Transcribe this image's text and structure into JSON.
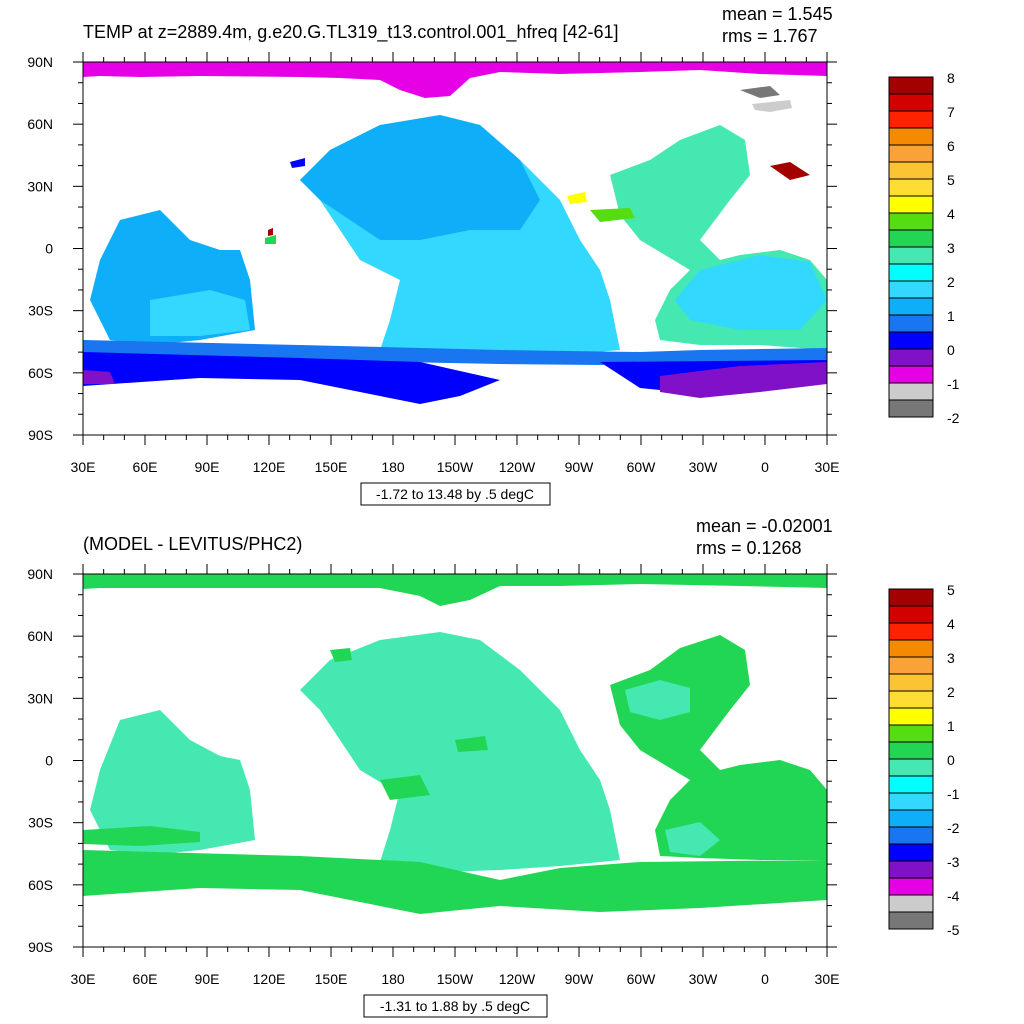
{
  "chart_data": [
    {
      "type": "heatmap",
      "title": "TEMP at z=2889.4m, g.e20.G.TL319_t13.control.001_hfreq [42-61]",
      "mean_label": "mean = 1.545",
      "rms_label": "rms = 1.767",
      "x_ticks": [
        "30E",
        "60E",
        "90E",
        "120E",
        "150E",
        "180",
        "150W",
        "120W",
        "90W",
        "60W",
        "30W",
        "0",
        "30E"
      ],
      "y_ticks": [
        "90N",
        "60N",
        "30N",
        "0",
        "30S",
        "60S",
        "90S"
      ],
      "range_label": "-1.72 to 13.48 by .5 degC",
      "colorbar": {
        "labels": [
          "8",
          "7",
          "6",
          "5",
          "4",
          "3",
          "2",
          "1",
          "0",
          "-1",
          "-2"
        ],
        "colors": [
          "#a30000",
          "#d40000",
          "#ff2200",
          "#f58a00",
          "#fba13a",
          "#fcc332",
          "#ffdd33",
          "#ffff00",
          "#55dd11",
          "#22d655",
          "#44e8b0",
          "#00ffff",
          "#33d8ff",
          "#0eaff8",
          "#1976f0",
          "#0000ff",
          "#8011c9",
          "#e600e6",
          "#cccccc",
          "#777777"
        ]
      }
    },
    {
      "type": "heatmap",
      "title": "(MODEL - LEVITUS/PHC2)",
      "mean_label": "mean = -0.02001",
      "rms_label": "rms = 0.1268",
      "x_ticks": [
        "30E",
        "60E",
        "90E",
        "120E",
        "150E",
        "180",
        "150W",
        "120W",
        "90W",
        "60W",
        "30W",
        "0",
        "30E"
      ],
      "y_ticks": [
        "90N",
        "60N",
        "30N",
        "0",
        "30S",
        "60S",
        "90S"
      ],
      "range_label": "-1.31 to 1.88 by .5 degC",
      "colorbar": {
        "labels": [
          "5",
          "4",
          "3",
          "2",
          "1",
          "0",
          "-1",
          "-2",
          "-3",
          "-4",
          "-5"
        ],
        "colors": [
          "#a30000",
          "#d40000",
          "#ff2200",
          "#f58a00",
          "#fba13a",
          "#fcc332",
          "#ffdd33",
          "#ffff00",
          "#55dd11",
          "#22d655",
          "#44e8b0",
          "#00ffff",
          "#33d8ff",
          "#0eaff8",
          "#1976f0",
          "#0000ff",
          "#8011c9",
          "#e600e6",
          "#cccccc",
          "#777777"
        ]
      }
    }
  ]
}
